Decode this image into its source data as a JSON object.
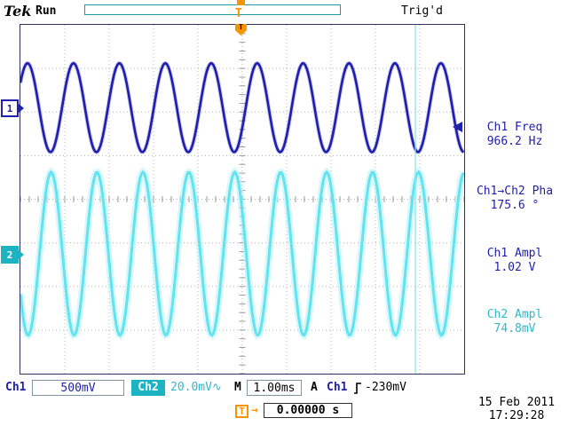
{
  "colors": {
    "ch1": "#2121ad",
    "ch2_text": "#2fb9c9",
    "ch2_fill": "#1cb3c3",
    "ch2_trace": "#63e2ef",
    "orange": "#f79400",
    "grid": "#b5b5b5"
  },
  "header": {
    "logo": "Tek",
    "acq_state": "Run",
    "trigger_status": "Trig'd",
    "trig_marker": "T"
  },
  "channel_markers": {
    "ch1": "1",
    "ch2": "2"
  },
  "side_readouts": [
    {
      "label": "Ch1 Freq",
      "value": "966.2 Hz"
    },
    {
      "label": "Ch1→Ch2 Pha",
      "value": "175.6 °"
    },
    {
      "label": "Ch1 Ampl",
      "value": "1.02 V"
    },
    {
      "label": "Ch2 Ampl",
      "value": "74.8mV"
    }
  ],
  "status_bar": {
    "ch1_label": "Ch1",
    "ch1_scale": "500mV",
    "ch2_label": "Ch2",
    "ch2_scale": "20.0mV",
    "ch2_coupling": "∿",
    "timebase_label": "M",
    "timebase": "1.00ms",
    "trig_mode_label": "A",
    "trig_source": "Ch1",
    "trig_slope": "rising",
    "trig_level": "-230mV"
  },
  "footer": {
    "trig_pos_marker": "T",
    "trig_pos_arrow": "→",
    "trig_position": "0.00000 s",
    "date": "15 Feb 2011",
    "time": "17:29:28"
  },
  "chart_data": {
    "type": "line",
    "title": "Oscilloscope traces Ch1 and Ch2",
    "divisions": {
      "x": 10,
      "y": 8
    },
    "timebase_ms_per_div": 1.0,
    "trigger": {
      "source": "Ch1",
      "level_mv": -230,
      "slope": "rising",
      "position_s": 0.0
    },
    "series": [
      {
        "name": "Ch1",
        "color": "#2121ad",
        "volts_per_div": 0.5,
        "amplitude_vpp": 1.02,
        "frequency_hz": 966.2,
        "phase_deg": 0,
        "center_div_from_top": 1.9
      },
      {
        "name": "Ch2",
        "color": "#63e2ef",
        "volts_per_div": 0.02,
        "amplitude_vpp": 0.0748,
        "frequency_hz": 966.2,
        "phase_deg": 175.6,
        "center_div_from_top": 5.25
      }
    ]
  }
}
